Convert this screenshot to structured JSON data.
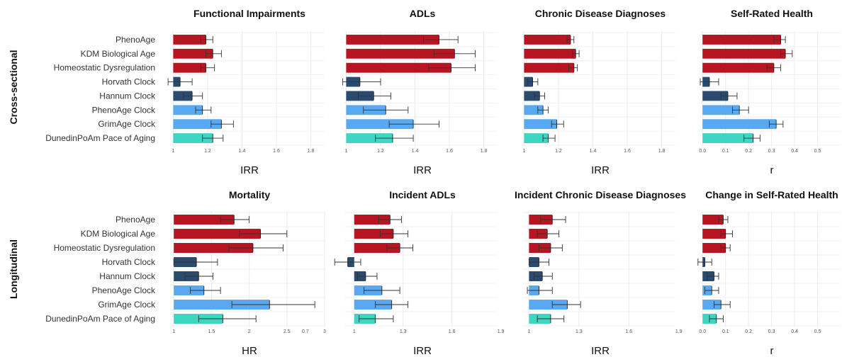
{
  "row_labels": [
    "Cross-sectional",
    "Longitudinal"
  ],
  "categories": [
    "PhenoAge",
    "KDM Biological Age",
    "Homeostatic Dysregulation",
    "Horvath Clock",
    "Hannum Clock",
    "PhenoAge Clock",
    "GrimAge Clock",
    "DunedinPoAm Pace of Aging"
  ],
  "colors": {
    "PhenoAge": "#b81522",
    "KDM Biological Age": "#b81522",
    "Homeostatic Dysregulation": "#b81522",
    "Horvath Clock": "#2a4a6e",
    "Hannum Clock": "#2a4a6e",
    "PhenoAge Clock": "#5aa9f0",
    "GrimAge Clock": "#5aa9f0",
    "DunedinPoAm Pace of Aging": "#3ed6c2"
  },
  "chart_data": [
    {
      "type": "bar",
      "title": "Functional Impairments",
      "xlabel": "IRR",
      "ylabel": "",
      "xlim": [
        0.99,
        1.88
      ],
      "base": 1,
      "ticks": [
        "1",
        "1.2",
        "1.4",
        "1.6",
        "1.8"
      ],
      "tick_values": [
        1,
        1.2,
        1.4,
        1.6,
        1.8
      ],
      "values": [
        1.19,
        1.23,
        1.19,
        1.04,
        1.11,
        1.17,
        1.28,
        1.23
      ],
      "ci": [
        [
          1.16,
          1.23
        ],
        [
          1.19,
          1.28
        ],
        [
          1.16,
          1.24
        ],
        [
          0.97,
          1.11
        ],
        [
          1.06,
          1.17
        ],
        [
          1.13,
          1.22
        ],
        [
          1.22,
          1.35
        ],
        [
          1.17,
          1.29
        ]
      ]
    },
    {
      "type": "bar",
      "title": "ADLs",
      "xlabel": "IRR",
      "ylabel": "",
      "xlim": [
        0.99,
        1.88
      ],
      "base": 1,
      "ticks": [
        "1",
        "1.2",
        "1.4",
        "1.6",
        "1.8"
      ],
      "tick_values": [
        1,
        1.2,
        1.4,
        1.6,
        1.8
      ],
      "values": [
        1.54,
        1.63,
        1.61,
        1.08,
        1.16,
        1.23,
        1.39,
        1.27
      ],
      "ci": [
        [
          1.45,
          1.65
        ],
        [
          1.51,
          1.75
        ],
        [
          1.48,
          1.75
        ],
        [
          0.98,
          1.2
        ],
        [
          1.07,
          1.26
        ],
        [
          1.1,
          1.36
        ],
        [
          1.25,
          1.54
        ],
        [
          1.17,
          1.39
        ]
      ]
    },
    {
      "type": "bar",
      "title": "Chronic Disease Diagnoses",
      "xlabel": "IRR",
      "ylabel": "",
      "xlim": [
        0.99,
        1.88
      ],
      "base": 1,
      "ticks": [
        "1",
        "1.2",
        "1.4",
        "1.6",
        "1.8"
      ],
      "tick_values": [
        1,
        1.2,
        1.4,
        1.6,
        1.8
      ],
      "values": [
        1.27,
        1.3,
        1.29,
        1.05,
        1.09,
        1.11,
        1.19,
        1.14
      ],
      "ci": [
        [
          1.25,
          1.29
        ],
        [
          1.28,
          1.32
        ],
        [
          1.26,
          1.31
        ],
        [
          1.02,
          1.08
        ],
        [
          1.06,
          1.12
        ],
        [
          1.08,
          1.14
        ],
        [
          1.16,
          1.23
        ],
        [
          1.11,
          1.18
        ]
      ]
    },
    {
      "type": "bar",
      "title": "Self-Rated Health",
      "xlabel": "r",
      "ylabel": "",
      "xlim": [
        -0.01,
        0.6
      ],
      "base": 0,
      "ticks": [
        "0.0",
        "0.1",
        "0.2",
        "0.3",
        "0.4",
        "0.5"
      ],
      "tick_values": [
        0,
        0.1,
        0.2,
        0.3,
        0.4,
        0.5
      ],
      "values": [
        0.34,
        0.36,
        0.31,
        0.03,
        0.11,
        0.16,
        0.32,
        0.22
      ],
      "ci": [
        [
          0.31,
          0.36
        ],
        [
          0.34,
          0.39
        ],
        [
          0.28,
          0.34
        ],
        [
          -0.01,
          0.07
        ],
        [
          0.08,
          0.15
        ],
        [
          0.13,
          0.2
        ],
        [
          0.29,
          0.35
        ],
        [
          0.18,
          0.25
        ]
      ]
    },
    {
      "type": "bar",
      "title": "Mortality",
      "xlabel": "HR",
      "ylabel": "",
      "xlim": [
        0.97,
        3.0
      ],
      "base": 1,
      "ticks": [
        "1",
        "1.5",
        "2",
        "2.5",
        "3"
      ],
      "tick_values": [
        1,
        1.5,
        2,
        2.5,
        3
      ],
      "values": [
        1.8,
        2.15,
        2.05,
        1.3,
        1.33,
        1.4,
        2.27,
        1.65
      ],
      "ci": [
        [
          1.62,
          2.0
        ],
        [
          1.87,
          2.5
        ],
        [
          1.73,
          2.45
        ],
        [
          1.0,
          1.58
        ],
        [
          1.15,
          1.52
        ],
        [
          1.22,
          1.62
        ],
        [
          1.77,
          2.87
        ],
        [
          1.33,
          2.09
        ]
      ]
    },
    {
      "type": "bar",
      "title": "Incident ADLs",
      "xlabel": "IRR",
      "ylabel": "",
      "xlim": [
        0.94,
        1.88
      ],
      "base": 1,
      "ticks": [
        "0.7",
        "1",
        "1.3",
        "1.6",
        "1.9"
      ],
      "tick_values": [
        0.7,
        1,
        1.3,
        1.6,
        1.9
      ],
      "values": [
        1.22,
        1.24,
        1.28,
        0.96,
        1.07,
        1.17,
        1.23,
        1.13
      ],
      "ci": [
        [
          1.15,
          1.29
        ],
        [
          1.16,
          1.33
        ],
        [
          1.2,
          1.36
        ],
        [
          0.88,
          1.04
        ],
        [
          1.02,
          1.14
        ],
        [
          1.06,
          1.28
        ],
        [
          1.13,
          1.33
        ],
        [
          1.03,
          1.24
        ]
      ]
    },
    {
      "type": "bar",
      "title": "Incident Chronic Disease Diagnoses",
      "xlabel": "IRR",
      "ylabel": "",
      "xlim": [
        0.96,
        1.88
      ],
      "base": 1,
      "ticks": [
        "1",
        "1.3",
        "1.6",
        "1.9"
      ],
      "tick_values": [
        1,
        1.3,
        1.6,
        1.9
      ],
      "values": [
        1.14,
        1.11,
        1.13,
        1.06,
        1.08,
        1.06,
        1.23,
        1.13
      ],
      "ci": [
        [
          1.07,
          1.22
        ],
        [
          1.05,
          1.18
        ],
        [
          1.06,
          1.2
        ],
        [
          1.0,
          1.12
        ],
        [
          1.03,
          1.14
        ],
        [
          0.99,
          1.14
        ],
        [
          1.14,
          1.31
        ],
        [
          1.05,
          1.21
        ]
      ]
    },
    {
      "type": "bar",
      "title": "Change in Self-Rated Health",
      "xlabel": "r",
      "ylabel": "",
      "xlim": [
        -0.01,
        0.6
      ],
      "base": 0,
      "ticks": [
        "0.0",
        "0.1",
        "0.2",
        "0.3",
        "0.4",
        "0.5"
      ],
      "tick_values": [
        0,
        0.1,
        0.2,
        0.3,
        0.4,
        0.5
      ],
      "values": [
        0.09,
        0.1,
        0.1,
        0.01,
        0.05,
        0.04,
        0.08,
        0.06
      ],
      "ci": [
        [
          0.07,
          0.11
        ],
        [
          0.08,
          0.13
        ],
        [
          0.08,
          0.12
        ],
        [
          -0.02,
          0.04
        ],
        [
          0.02,
          0.07
        ],
        [
          0.01,
          0.07
        ],
        [
          0.05,
          0.12
        ],
        [
          0.03,
          0.09
        ]
      ]
    }
  ]
}
